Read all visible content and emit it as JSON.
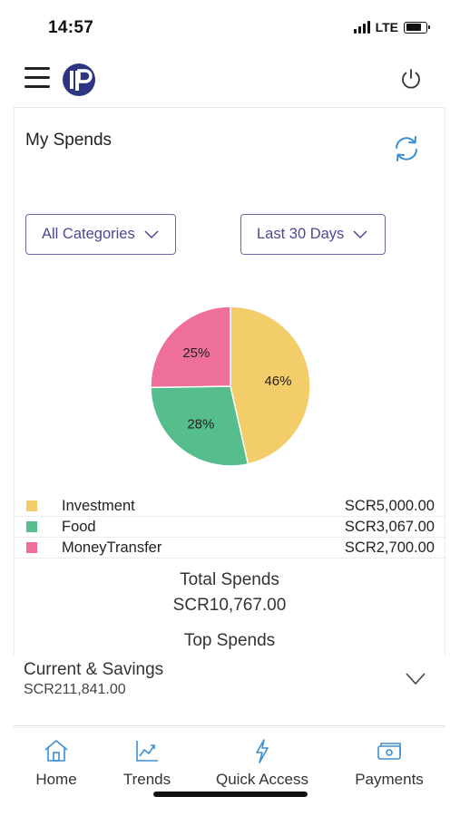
{
  "status": {
    "time": "14:57",
    "network": "LTE"
  },
  "header": {
    "menu_icon": "hamburger-menu-icon",
    "logo_icon": "bank-logo-icon",
    "power_icon": "power-icon"
  },
  "spends": {
    "title": "My Spends",
    "refresh_icon": "refresh-icon",
    "category_filter": "All Categories",
    "period_filter": "Last 30 Days",
    "total_label": "Total Spends",
    "total_value": "SCR10,767.00",
    "top_spends_label": "Top Spends",
    "legend": [
      {
        "name": "Investment",
        "amount": "SCR5,000.00",
        "color": "#f4cd6b"
      },
      {
        "name": "Food",
        "amount": "SCR3,067.00",
        "color": "#56bd8c"
      },
      {
        "name": "MoneyTransfer",
        "amount": "SCR2,700.00",
        "color": "#ee6f9a"
      }
    ]
  },
  "chart_data": {
    "type": "pie",
    "categories": [
      "Investment",
      "Food",
      "MoneyTransfer"
    ],
    "values": [
      46,
      28,
      25
    ],
    "labels": [
      "46%",
      "28%",
      "25%"
    ],
    "colors": [
      "#f4cd6b",
      "#56bd8c",
      "#ee6f9a"
    ]
  },
  "account": {
    "name": "Current & Savings",
    "balance": "SCR211,841.00"
  },
  "nav": [
    {
      "label": "Home",
      "icon": "home-icon"
    },
    {
      "label": "Trends",
      "icon": "trends-icon"
    },
    {
      "label": "Quick Access",
      "icon": "lightning-icon"
    },
    {
      "label": "Payments",
      "icon": "payments-icon"
    }
  ]
}
